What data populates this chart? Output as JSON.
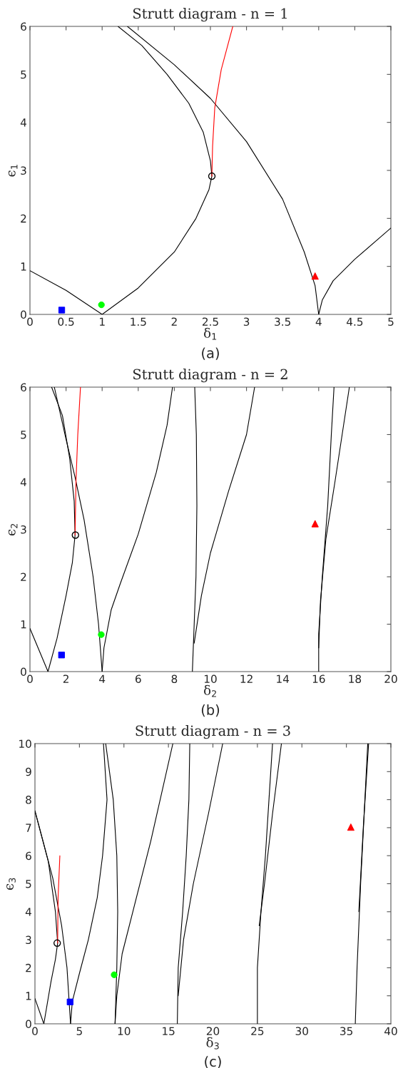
{
  "chart_data": [
    {
      "type": "line",
      "title": "Strutt diagram - n = 1",
      "xlabel": "δ$_{1}$",
      "ylabel": "ϵ$_{1}$",
      "annotations": [
        "(a)"
      ],
      "xlim": [
        0,
        5
      ],
      "ylim": [
        0,
        6
      ],
      "xticks": [
        0,
        0.5,
        1,
        1.5,
        2,
        2.5,
        3,
        3.5,
        4,
        4.5,
        5
      ],
      "yticks": [
        0,
        1,
        2,
        3,
        4,
        5,
        6
      ],
      "grid": false,
      "legend": false,
      "series": [
        {
          "color": "#000000",
          "x": [
            0,
            0.5,
            1
          ],
          "values": [
            0.91,
            0.5,
            0
          ]
        },
        {
          "color": "#000000",
          "x": [
            1,
            1.5,
            2,
            2.3,
            2.48,
            2.52,
            2.5,
            2.4,
            2.2,
            1.9,
            1.55,
            1.22
          ],
          "values": [
            0,
            0.55,
            1.3,
            2.0,
            2.6,
            2.88,
            3.2,
            3.8,
            4.4,
            5.0,
            5.6,
            6
          ]
        },
        {
          "color": "#000000",
          "x": [
            1.35,
            2,
            2.5,
            3,
            3.5,
            3.8,
            3.95,
            4
          ],
          "values": [
            6,
            5.2,
            4.5,
            3.6,
            2.4,
            1.3,
            0.6,
            0
          ]
        },
        {
          "color": "#000000",
          "x": [
            4,
            4.05,
            4.2,
            4.5,
            5
          ],
          "values": [
            0,
            0.3,
            0.7,
            1.15,
            1.8
          ]
        },
        {
          "color": "#ff0000",
          "x": [
            2.52,
            2.53,
            2.56,
            2.65,
            2.81
          ],
          "values": [
            2.88,
            3.5,
            4.3,
            5.1,
            6
          ]
        },
        {
          "type": "scatter",
          "marker": "square",
          "color": "#0000ff",
          "x": [
            0.44
          ],
          "values": [
            0.09
          ]
        },
        {
          "type": "scatter",
          "marker": "circle",
          "color": "#00ff00",
          "x": [
            0.99
          ],
          "values": [
            0.2
          ]
        },
        {
          "type": "scatter",
          "marker": "triangle",
          "color": "#ff0000",
          "x": [
            3.95
          ],
          "values": [
            0.8
          ]
        },
        {
          "type": "line",
          "marker": "circle",
          "color": "#000000",
          "x": [
            2.52
          ],
          "values": [
            2.88
          ]
        }
      ]
    },
    {
      "type": "line",
      "title": "Strutt diagram - n = 2",
      "xlabel": "δ$_{2}$",
      "ylabel": "ϵ$_{2}$",
      "annotations": [
        "(b)"
      ],
      "xlim": [
        0,
        20
      ],
      "ylim": [
        0,
        6
      ],
      "xticks": [
        0,
        2,
        4,
        6,
        8,
        10,
        12,
        14,
        16,
        18,
        20
      ],
      "yticks": [
        0,
        1,
        2,
        3,
        4,
        5,
        6
      ],
      "grid": false,
      "legend": false,
      "series": [
        {
          "color": "#000000",
          "x": [
            0,
            1
          ],
          "values": [
            0.91,
            0
          ]
        },
        {
          "color": "#000000",
          "x": [
            1,
            1.5,
            2,
            2.35,
            2.5,
            2.45,
            2.2,
            1.8,
            1.2
          ],
          "values": [
            0,
            0.7,
            1.6,
            2.3,
            2.88,
            3.6,
            4.5,
            5.4,
            6
          ]
        },
        {
          "color": "#000000",
          "x": [
            1.35,
            2,
            2.5,
            3,
            3.5,
            3.8,
            4
          ],
          "values": [
            6,
            4.9,
            4.1,
            3.2,
            2.0,
            1.0,
            0
          ]
        },
        {
          "color": "#000000",
          "x": [
            4,
            4.1,
            4.5,
            5,
            6,
            7,
            7.6,
            7.9
          ],
          "values": [
            0,
            0.5,
            1.3,
            1.85,
            2.9,
            4.2,
            5.2,
            6
          ]
        },
        {
          "color": "#000000",
          "x": [
            9,
            9.1,
            9.2,
            9.25,
            9.22,
            9.13
          ],
          "values": [
            0,
            1,
            2,
            3.5,
            5,
            6
          ]
        },
        {
          "color": "#000000",
          "x": [
            9.1,
            9.5,
            10,
            11,
            12,
            12.45
          ],
          "values": [
            0.6,
            1.6,
            2.5,
            3.8,
            5.0,
            6
          ]
        },
        {
          "color": "#000000",
          "x": [
            16,
            16,
            16.2,
            16.5,
            16.7,
            16.85
          ],
          "values": [
            0,
            0.8,
            2,
            3.5,
            5,
            6
          ]
        },
        {
          "color": "#000000",
          "x": [
            16,
            16.1,
            16.4,
            16.9,
            17.3,
            17.7
          ],
          "values": [
            0.5,
            1.5,
            2.8,
            4,
            5,
            6
          ]
        },
        {
          "color": "#ff0000",
          "x": [
            2.5,
            2.55,
            2.65,
            2.8
          ],
          "values": [
            2.88,
            4,
            5,
            6
          ]
        },
        {
          "type": "scatter",
          "marker": "square",
          "color": "#0000ff",
          "x": [
            1.75
          ],
          "values": [
            0.35
          ]
        },
        {
          "type": "scatter",
          "marker": "circle",
          "color": "#00ff00",
          "x": [
            3.95
          ],
          "values": [
            0.78
          ]
        },
        {
          "type": "scatter",
          "marker": "triangle",
          "color": "#ff0000",
          "x": [
            15.8
          ],
          "values": [
            3.12
          ]
        },
        {
          "type": "line",
          "marker": "circle",
          "color": "#000000",
          "x": [
            2.52
          ],
          "values": [
            2.88
          ]
        }
      ]
    },
    {
      "type": "line",
      "title": "Strutt diagram - n = 3",
      "xlabel": "δ$_{3}$",
      "ylabel": "ϵ$_{3}$",
      "annotations": [
        "(c)"
      ],
      "xlim": [
        0,
        40
      ],
      "ylim": [
        0,
        10
      ],
      "xticks": [
        0,
        5,
        10,
        15,
        20,
        25,
        30,
        35,
        40
      ],
      "yticks": [
        0,
        1,
        2,
        3,
        4,
        5,
        6,
        7,
        8,
        9,
        10
      ],
      "grid": false,
      "legend": false,
      "series": [
        {
          "color": "#000000",
          "x": [
            0,
            1
          ],
          "values": [
            0.9,
            0
          ]
        },
        {
          "color": "#000000",
          "x": [
            1,
            1.8,
            2.3,
            2.55,
            2.3,
            1.5,
            0
          ],
          "values": [
            0,
            1.5,
            2.3,
            2.88,
            4,
            5.8,
            7.6
          ]
        },
        {
          "color": "#000000",
          "x": [
            0,
            1,
            2,
            3,
            3.6,
            4
          ],
          "values": [
            7.6,
            6.4,
            5.2,
            3.5,
            2,
            0
          ]
        },
        {
          "color": "#000000",
          "x": [
            4,
            4.2,
            5,
            6,
            7,
            7.6,
            8.1,
            7.7
          ],
          "values": [
            0,
            0.8,
            1.8,
            3,
            4.5,
            6,
            8,
            10
          ]
        },
        {
          "color": "#000000",
          "x": [
            7.95,
            8.8,
            9.2,
            9.3,
            9.2,
            9
          ],
          "values": [
            10,
            8,
            6,
            4,
            2,
            0
          ]
        },
        {
          "color": "#000000",
          "x": [
            9,
            9.2,
            9.8,
            11,
            13,
            15.5
          ],
          "values": [
            0,
            1,
            2.5,
            4,
            6.5,
            10
          ]
        },
        {
          "color": "#000000",
          "x": [
            16,
            16.1,
            16.6,
            17,
            17.3,
            17.4
          ],
          "values": [
            0,
            2,
            4,
            6,
            8,
            10
          ]
        },
        {
          "color": "#000000",
          "x": [
            16.1,
            16.7,
            17.8,
            19.5,
            21.1
          ],
          "values": [
            1,
            3,
            5,
            7.5,
            10
          ]
        },
        {
          "color": "#000000",
          "x": [
            25,
            25,
            25.4,
            25.9,
            26.3,
            26.7
          ],
          "values": [
            0,
            2,
            4,
            6,
            8,
            10
          ]
        },
        {
          "color": "#000000",
          "x": [
            25.2,
            25.8,
            26.7,
            27.7
          ],
          "values": [
            3.5,
            5,
            7.5,
            10
          ]
        },
        {
          "color": "#000000",
          "x": [
            36,
            36.2,
            36.6,
            37,
            37.4
          ],
          "values": [
            0,
            2,
            5,
            7.5,
            10
          ]
        },
        {
          "color": "#000000",
          "x": [
            36.4,
            36.9,
            37.5
          ],
          "values": [
            4,
            7,
            10
          ]
        },
        {
          "color": "#ff0000",
          "x": [
            2.55,
            2.6,
            2.8
          ],
          "values": [
            2.88,
            4.5,
            6
          ]
        },
        {
          "type": "scatter",
          "marker": "square",
          "color": "#0000ff",
          "x": [
            3.95
          ],
          "values": [
            0.78
          ]
        },
        {
          "type": "scatter",
          "marker": "circle",
          "color": "#00ff00",
          "x": [
            8.9
          ],
          "values": [
            1.75
          ]
        },
        {
          "type": "scatter",
          "marker": "triangle",
          "color": "#ff0000",
          "x": [
            35.5
          ],
          "values": [
            7.02
          ]
        },
        {
          "type": "line",
          "marker": "circle",
          "color": "#000000",
          "x": [
            2.5
          ],
          "values": [
            2.88
          ]
        }
      ]
    }
  ]
}
